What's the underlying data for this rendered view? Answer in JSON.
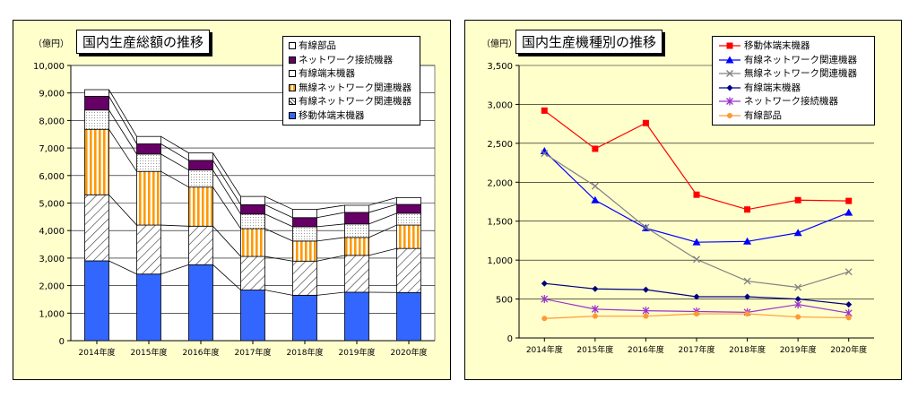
{
  "chart_data": [
    {
      "type": "bar",
      "stacked": true,
      "title": "国内生産総額の推移",
      "unit": "（億円）",
      "categories": [
        "2014年度",
        "2015年度",
        "2016年度",
        "2017年度",
        "2018年度",
        "2019年度",
        "2020年度"
      ],
      "ylim": [
        0,
        10000
      ],
      "yticks": [
        "0",
        "1,000",
        "2,000",
        "3,000",
        "4,000",
        "5,000",
        "6,000",
        "7,000",
        "8,000",
        "9,000",
        "10,000"
      ],
      "grid": true,
      "legend_position": "top-right",
      "series": [
        {
          "name": "移動体端末機器",
          "color": "#3366ff",
          "values": [
            2900,
            2420,
            2760,
            1840,
            1650,
            1760,
            1750
          ]
        },
        {
          "name": "有線ネットワーク関連機器",
          "color": "#ffffff",
          "values": [
            2400,
            1780,
            1400,
            1220,
            1240,
            1340,
            1600
          ]
        },
        {
          "name": "無線ネットワーク関連機器",
          "color": "#ffcc66",
          "values": [
            2380,
            1950,
            1420,
            1010,
            730,
            650,
            850
          ]
        },
        {
          "name": "有線端末機器",
          "color": "#ffffff",
          "values": [
            700,
            630,
            620,
            530,
            520,
            490,
            430
          ]
        },
        {
          "name": "ネットワーク接続機器",
          "color": "#660066",
          "values": [
            500,
            370,
            350,
            340,
            330,
            420,
            320
          ]
        },
        {
          "name": "有線部品",
          "color": "#ffffff",
          "values": [
            240,
            270,
            270,
            300,
            300,
            260,
            250
          ]
        }
      ]
    },
    {
      "type": "line",
      "title": "国内生産機種別の推移",
      "unit": "（億円）",
      "categories": [
        "2014年度",
        "2015年度",
        "2016年度",
        "2017年度",
        "2018年度",
        "2019年度",
        "2020年度"
      ],
      "ylim": [
        0,
        3500
      ],
      "yticks": [
        "0",
        "500",
        "1,000",
        "1,500",
        "2,000",
        "2,500",
        "3,000",
        "3,500"
      ],
      "grid": true,
      "legend_position": "top-right",
      "series": [
        {
          "name": "移動体端末機器",
          "color": "#ff0000",
          "marker": "square",
          "values": [
            2920,
            2430,
            2760,
            1840,
            1650,
            1770,
            1760
          ]
        },
        {
          "name": "有線ネットワーク関連機器",
          "color": "#0000ff",
          "marker": "triangle",
          "values": [
            2400,
            1770,
            1410,
            1230,
            1240,
            1350,
            1610
          ]
        },
        {
          "name": "無線ネットワーク関連機器",
          "color": "#808080",
          "marker": "x",
          "values": [
            2370,
            1950,
            1420,
            1010,
            730,
            650,
            850
          ]
        },
        {
          "name": "有線端末機器",
          "color": "#000080",
          "marker": "diamond",
          "values": [
            700,
            630,
            620,
            530,
            530,
            500,
            430
          ]
        },
        {
          "name": "ネットワーク接続機器",
          "color": "#9933cc",
          "marker": "star",
          "values": [
            500,
            370,
            350,
            340,
            330,
            430,
            320
          ]
        },
        {
          "name": "有線部品",
          "color": "#ff9933",
          "marker": "circle",
          "values": [
            250,
            280,
            280,
            310,
            310,
            270,
            260
          ]
        }
      ]
    }
  ]
}
